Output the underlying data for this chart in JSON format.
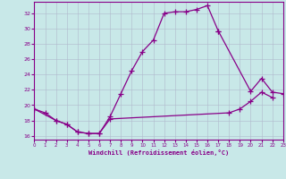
{
  "xlabel": "Windchill (Refroidissement éolien,°C)",
  "bg_color": "#c8e8e8",
  "grid_color": "#b0b8cc",
  "line_color": "#880088",
  "xlim": [
    0,
    23
  ],
  "ylim": [
    15.5,
    33.5
  ],
  "xticks": [
    0,
    1,
    2,
    3,
    4,
    5,
    6,
    7,
    8,
    9,
    10,
    11,
    12,
    13,
    14,
    15,
    16,
    17,
    18,
    19,
    20,
    21,
    22,
    23
  ],
  "yticks": [
    16,
    18,
    20,
    22,
    24,
    26,
    28,
    30,
    32
  ],
  "series1_x": [
    0,
    1,
    2,
    3,
    4,
    5,
    6,
    7,
    8,
    9,
    10,
    11,
    12,
    13,
    14,
    15,
    16,
    17
  ],
  "series1_y": [
    19.5,
    19.0,
    18.0,
    17.5,
    16.5,
    16.3,
    16.3,
    18.5,
    21.5,
    24.5,
    27.0,
    28.5,
    32.0,
    32.2,
    32.2,
    32.5,
    33.0,
    29.7
  ],
  "series2_x": [
    17,
    20,
    21,
    22,
    23
  ],
  "series2_y": [
    29.7,
    21.8,
    23.5,
    21.7,
    21.5
  ],
  "series3_x": [
    0,
    2,
    3,
    4,
    5,
    6,
    7,
    18,
    19,
    20,
    21,
    22
  ],
  "series3_y": [
    19.5,
    18.0,
    17.5,
    16.5,
    16.3,
    16.3,
    18.2,
    19.0,
    19.5,
    20.5,
    21.7,
    21.0
  ]
}
